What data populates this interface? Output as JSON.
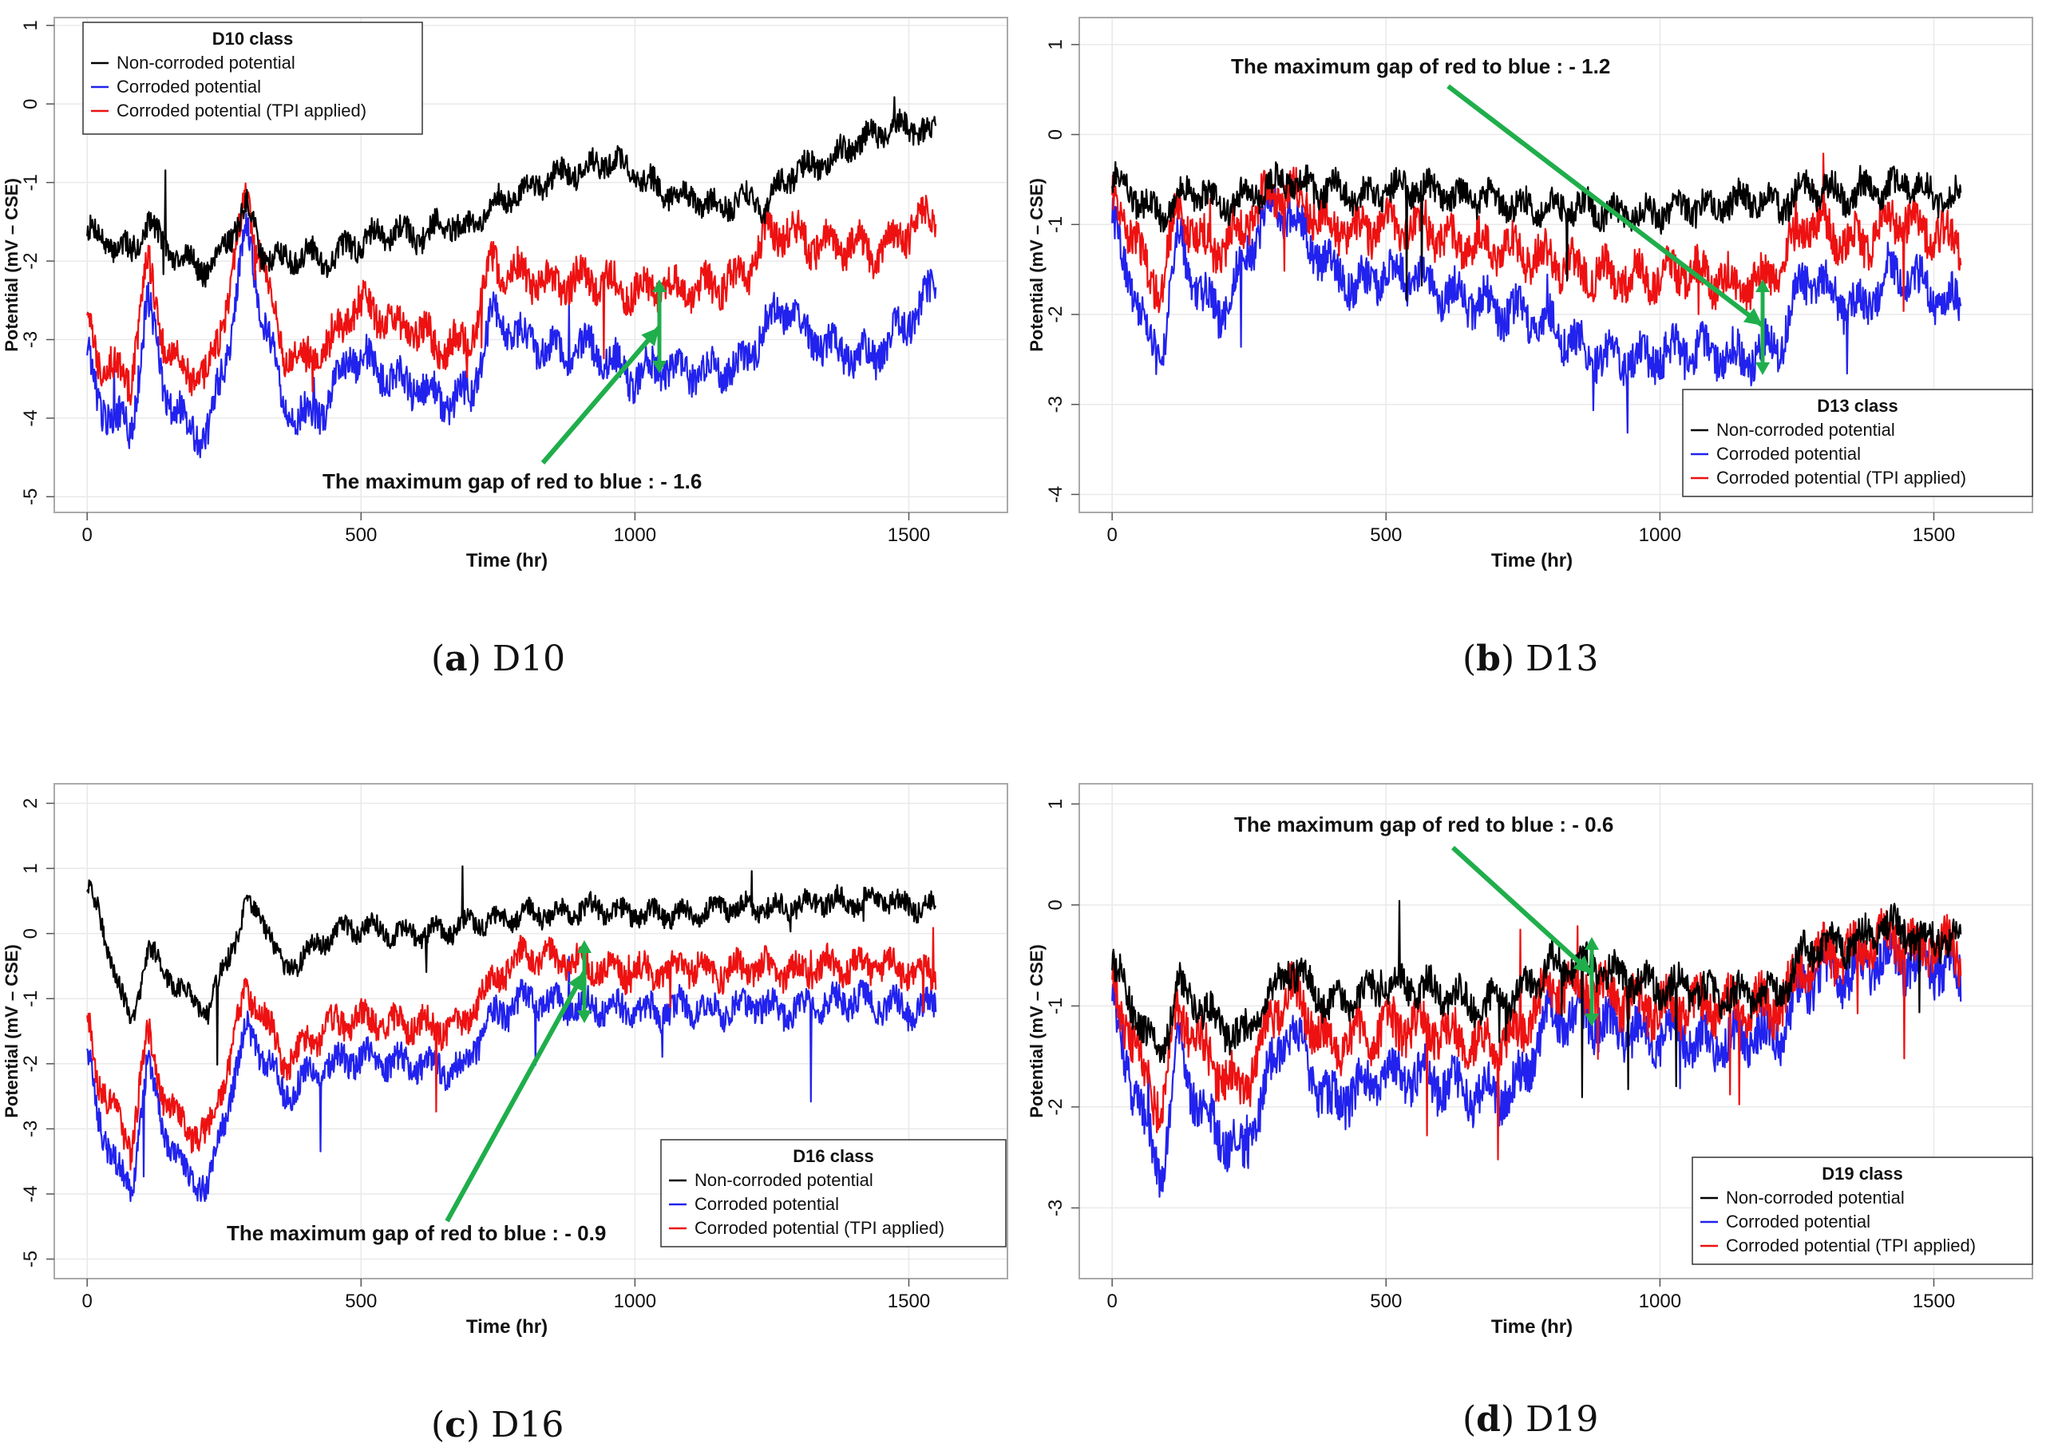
{
  "colors": {
    "non_corroded": "#000000",
    "corroded": "#2222ee",
    "tpi": "#ee1111",
    "arrow": "#1fae4b",
    "grid": "#e9e9e9",
    "frame": "#aaaaaa"
  },
  "legend_labels": [
    "Non-corroded potential",
    "Corroded potential",
    "Corroded potential (TPI applied)"
  ],
  "chart_data": [
    {
      "id": "a",
      "type": "line",
      "caption_letter": "a",
      "caption_text": "D10",
      "legend_title": "D10 class",
      "legend_position": "top-left",
      "xlabel": "Time (hr)",
      "ylabel": "Potential (mV – CSE)",
      "xlim": [
        -60,
        1680
      ],
      "ylim": [
        -5.2,
        1.1
      ],
      "xticks": [
        0,
        500,
        1000,
        1500
      ],
      "yticks": [
        1,
        0,
        -1,
        -2,
        -3,
        -4,
        -5
      ],
      "annotation": "The maximum gap of red to blue : - 1.6",
      "series": [
        {
          "name": "Non-corroded potential",
          "x": [
            0,
            20,
            50,
            80,
            110,
            140,
            180,
            220,
            260,
            290,
            320,
            360,
            400,
            440,
            480,
            520,
            560,
            600,
            660,
            700,
            740,
            800,
            860,
            920,
            960,
            1000,
            1050,
            1100,
            1150,
            1200,
            1240,
            1280,
            1320,
            1360,
            1400,
            1440,
            1480,
            1520,
            1550
          ],
          "values": [
            -1.6,
            -1.7,
            -1.8,
            -1.9,
            -1.5,
            -1.8,
            -2.0,
            -2.1,
            -1.7,
            -1.3,
            -1.9,
            -2.0,
            -1.9,
            -2.0,
            -1.8,
            -1.7,
            -1.6,
            -1.7,
            -1.5,
            -1.6,
            -1.3,
            -1.1,
            -0.9,
            -0.8,
            -0.7,
            -0.9,
            -1.1,
            -1.2,
            -1.3,
            -1.2,
            -1.3,
            -0.9,
            -0.8,
            -0.7,
            -0.5,
            -0.4,
            -0.3,
            -0.3,
            -0.4
          ]
        },
        {
          "name": "Corroded potential",
          "x": [
            0,
            20,
            50,
            80,
            110,
            140,
            180,
            220,
            260,
            290,
            320,
            360,
            400,
            440,
            480,
            520,
            560,
            600,
            660,
            700,
            740,
            800,
            860,
            920,
            960,
            1000,
            1050,
            1100,
            1150,
            1200,
            1240,
            1280,
            1320,
            1360,
            1400,
            1440,
            1480,
            1520,
            1550
          ],
          "values": [
            -3.2,
            -3.8,
            -4.0,
            -4.2,
            -2.5,
            -3.6,
            -4.1,
            -4.2,
            -3.0,
            -1.6,
            -2.6,
            -3.9,
            -4.0,
            -3.8,
            -3.2,
            -3.3,
            -3.5,
            -3.6,
            -3.8,
            -3.7,
            -2.7,
            -3.0,
            -3.2,
            -3.1,
            -3.3,
            -3.5,
            -3.3,
            -3.4,
            -3.4,
            -3.3,
            -2.8,
            -2.6,
            -3.0,
            -3.1,
            -3.2,
            -3.2,
            -2.9,
            -2.6,
            -2.3
          ]
        },
        {
          "name": "Corroded potential (TPI applied)",
          "x": [
            0,
            20,
            50,
            80,
            110,
            140,
            180,
            220,
            260,
            290,
            320,
            360,
            400,
            440,
            480,
            520,
            560,
            600,
            660,
            700,
            740,
            800,
            860,
            920,
            960,
            1000,
            1050,
            1100,
            1150,
            1200,
            1240,
            1280,
            1320,
            1360,
            1400,
            1440,
            1480,
            1520,
            1550
          ],
          "values": [
            -2.7,
            -3.2,
            -3.4,
            -3.5,
            -2.0,
            -3.0,
            -3.4,
            -3.5,
            -2.4,
            -1.2,
            -2.0,
            -3.2,
            -3.3,
            -3.1,
            -2.6,
            -2.6,
            -2.8,
            -2.9,
            -3.1,
            -3.0,
            -2.0,
            -2.2,
            -2.3,
            -2.2,
            -2.3,
            -2.4,
            -2.3,
            -2.4,
            -2.3,
            -2.2,
            -1.7,
            -1.6,
            -1.8,
            -1.8,
            -1.8,
            -1.9,
            -1.7,
            -1.5,
            -1.4
          ]
        }
      ]
    },
    {
      "id": "b",
      "type": "line",
      "caption_letter": "b",
      "caption_text": "D13",
      "legend_title": "D13 class",
      "legend_position": "bottom-right",
      "xlabel": "Time (hr)",
      "ylabel": "Potential (mV – CSE)",
      "xlim": [
        -60,
        1680
      ],
      "ylim": [
        -4.2,
        1.3
      ],
      "xticks": [
        0,
        500,
        1000,
        1500
      ],
      "yticks": [
        1,
        0,
        -1,
        -2,
        -3,
        -4
      ],
      "annotation": "The maximum gap of red to blue : - 1.2",
      "series": [
        {
          "name": "Non-corroded potential",
          "x": [
            0,
            30,
            60,
            90,
            120,
            160,
            200,
            240,
            280,
            320,
            360,
            400,
            450,
            500,
            560,
            620,
            680,
            740,
            800,
            860,
            920,
            980,
            1040,
            1100,
            1160,
            1220,
            1260,
            1300,
            1340,
            1380,
            1420,
            1460,
            1500,
            1550
          ],
          "values": [
            -0.5,
            -0.6,
            -0.8,
            -0.9,
            -0.7,
            -0.6,
            -0.8,
            -0.7,
            -0.6,
            -0.5,
            -0.6,
            -0.6,
            -0.7,
            -0.6,
            -0.6,
            -0.7,
            -0.7,
            -0.8,
            -0.8,
            -0.8,
            -0.9,
            -0.9,
            -0.8,
            -0.8,
            -0.7,
            -0.8,
            -0.6,
            -0.6,
            -0.7,
            -0.6,
            -0.6,
            -0.5,
            -0.7,
            -0.7
          ]
        },
        {
          "name": "Corroded potential",
          "x": [
            0,
            30,
            60,
            90,
            120,
            160,
            200,
            240,
            280,
            320,
            360,
            400,
            450,
            500,
            560,
            620,
            680,
            740,
            800,
            860,
            920,
            980,
            1040,
            1100,
            1160,
            1220,
            1260,
            1300,
            1340,
            1380,
            1420,
            1460,
            1500,
            1550
          ],
          "values": [
            -1.0,
            -1.5,
            -2.2,
            -2.5,
            -1.1,
            -1.8,
            -2.0,
            -1.4,
            -0.9,
            -0.8,
            -1.2,
            -1.5,
            -1.7,
            -1.5,
            -1.6,
            -1.8,
            -1.9,
            -2.0,
            -2.1,
            -2.4,
            -2.5,
            -2.5,
            -2.4,
            -2.4,
            -2.5,
            -2.3,
            -1.6,
            -1.7,
            -1.9,
            -1.9,
            -1.5,
            -1.6,
            -1.8,
            -1.9
          ]
        },
        {
          "name": "Corroded potential (TPI applied)",
          "x": [
            0,
            30,
            60,
            90,
            120,
            160,
            200,
            240,
            280,
            320,
            360,
            400,
            450,
            500,
            560,
            620,
            680,
            740,
            800,
            860,
            920,
            980,
            1040,
            1100,
            1160,
            1220,
            1260,
            1300,
            1340,
            1380,
            1420,
            1460,
            1500,
            1550
          ],
          "values": [
            -0.7,
            -1.0,
            -1.5,
            -1.7,
            -0.8,
            -1.2,
            -1.3,
            -1.0,
            -0.7,
            -0.6,
            -0.8,
            -1.0,
            -1.1,
            -1.0,
            -1.0,
            -1.2,
            -1.2,
            -1.3,
            -1.4,
            -1.5,
            -1.6,
            -1.6,
            -1.5,
            -1.6,
            -1.7,
            -1.5,
            -1.0,
            -1.0,
            -1.2,
            -1.2,
            -0.9,
            -1.0,
            -1.1,
            -1.2
          ]
        }
      ]
    },
    {
      "id": "c",
      "type": "line",
      "caption_letter": "c",
      "caption_text": "D16",
      "legend_title": "D16 class",
      "legend_position": "bottom-right",
      "xlabel": "Time (hr)",
      "ylabel": "Potential (mV – CSE)",
      "xlim": [
        -60,
        1680
      ],
      "ylim": [
        -5.3,
        2.3
      ],
      "xticks": [
        0,
        500,
        1000,
        1500
      ],
      "yticks": [
        2,
        1,
        0,
        -1,
        -2,
        -3,
        -4,
        -5
      ],
      "annotation": "The maximum gap of red to blue : - 0.9",
      "series": [
        {
          "name": "Non-corroded potential",
          "x": [
            0,
            20,
            50,
            80,
            110,
            140,
            180,
            220,
            260,
            290,
            320,
            360,
            400,
            450,
            500,
            560,
            620,
            680,
            740,
            800,
            860,
            920,
            980,
            1040,
            1100,
            1160,
            1220,
            1280,
            1340,
            1400,
            1460,
            1520,
            1550
          ],
          "values": [
            0.7,
            0.3,
            -0.5,
            -1.5,
            -0.2,
            -0.6,
            -0.9,
            -1.2,
            -0.3,
            0.4,
            0.3,
            -0.6,
            -0.3,
            0.0,
            0.1,
            0.0,
            0.0,
            0.1,
            0.2,
            0.3,
            0.3,
            0.4,
            0.3,
            0.3,
            0.3,
            0.4,
            0.4,
            0.4,
            0.5,
            0.5,
            0.5,
            0.4,
            0.4
          ]
        },
        {
          "name": "Corroded potential",
          "x": [
            0,
            20,
            50,
            80,
            110,
            140,
            180,
            220,
            260,
            290,
            320,
            360,
            400,
            450,
            500,
            560,
            620,
            680,
            740,
            800,
            860,
            920,
            980,
            1040,
            1100,
            1160,
            1220,
            1280,
            1340,
            1400,
            1460,
            1520,
            1550
          ],
          "values": [
            -1.8,
            -2.8,
            -3.5,
            -4.0,
            -2.0,
            -3.0,
            -3.7,
            -3.9,
            -2.5,
            -1.5,
            -1.8,
            -2.5,
            -2.2,
            -2.0,
            -1.9,
            -2.0,
            -2.0,
            -2.1,
            -1.3,
            -1.0,
            -1.1,
            -1.1,
            -1.2,
            -1.2,
            -1.1,
            -1.2,
            -1.1,
            -1.2,
            -1.1,
            -1.0,
            -1.1,
            -1.2,
            -1.1
          ]
        },
        {
          "name": "Corroded potential (TPI applied)",
          "x": [
            0,
            20,
            50,
            80,
            110,
            140,
            180,
            220,
            260,
            290,
            320,
            360,
            400,
            450,
            500,
            560,
            620,
            680,
            740,
            800,
            860,
            920,
            980,
            1040,
            1100,
            1160,
            1220,
            1280,
            1340,
            1400,
            1460,
            1520,
            1550
          ],
          "values": [
            -1.3,
            -2.2,
            -2.8,
            -3.3,
            -1.5,
            -2.5,
            -3.0,
            -3.1,
            -1.9,
            -0.9,
            -1.2,
            -2.0,
            -1.7,
            -1.4,
            -1.3,
            -1.4,
            -1.4,
            -1.5,
            -0.7,
            -0.3,
            -0.4,
            -0.5,
            -0.6,
            -0.6,
            -0.5,
            -0.6,
            -0.5,
            -0.6,
            -0.5,
            -0.5,
            -0.5,
            -0.6,
            -0.6
          ]
        }
      ]
    },
    {
      "id": "d",
      "type": "line",
      "caption_letter": "d",
      "caption_text": "D19",
      "legend_title": "D19 class",
      "legend_position": "bottom-right",
      "xlabel": "Time (hr)",
      "ylabel": "Potential (mV – CSE)",
      "xlim": [
        -60,
        1680
      ],
      "ylim": [
        -3.7,
        1.2
      ],
      "xticks": [
        0,
        500,
        1000,
        1500
      ],
      "yticks": [
        1,
        0,
        -1,
        -2,
        -3
      ],
      "annotation": "The maximum gap of red to blue : - 0.6",
      "series": [
        {
          "name": "Non-corroded potential",
          "x": [
            0,
            30,
            60,
            90,
            120,
            160,
            200,
            240,
            280,
            320,
            360,
            400,
            450,
            500,
            560,
            620,
            680,
            740,
            800,
            860,
            920,
            980,
            1040,
            1100,
            1160,
            1220,
            1260,
            1300,
            1340,
            1380,
            1420,
            1460,
            1500,
            1550
          ],
          "values": [
            -0.6,
            -0.9,
            -1.3,
            -1.5,
            -0.8,
            -1.0,
            -1.2,
            -1.3,
            -1.0,
            -0.6,
            -0.8,
            -1.0,
            -0.9,
            -0.8,
            -0.8,
            -0.9,
            -1.0,
            -0.9,
            -0.6,
            -0.6,
            -0.7,
            -0.8,
            -0.8,
            -0.9,
            -0.9,
            -0.9,
            -0.5,
            -0.4,
            -0.4,
            -0.3,
            -0.2,
            -0.3,
            -0.3,
            -0.4
          ]
        },
        {
          "name": "Corroded potential",
          "x": [
            0,
            30,
            60,
            90,
            120,
            160,
            200,
            240,
            280,
            320,
            360,
            400,
            450,
            500,
            560,
            620,
            680,
            740,
            800,
            860,
            920,
            980,
            1040,
            1100,
            1160,
            1220,
            1260,
            1300,
            1340,
            1380,
            1420,
            1460,
            1500,
            1550
          ],
          "values": [
            -1.0,
            -1.6,
            -2.2,
            -2.7,
            -1.4,
            -2.0,
            -2.3,
            -2.5,
            -1.8,
            -1.2,
            -1.6,
            -2.0,
            -1.8,
            -1.7,
            -1.7,
            -1.8,
            -1.9,
            -1.8,
            -1.1,
            -1.1,
            -1.2,
            -1.3,
            -1.3,
            -1.4,
            -1.3,
            -1.3,
            -0.8,
            -0.7,
            -0.7,
            -0.6,
            -0.5,
            -0.6,
            -0.6,
            -0.7
          ]
        },
        {
          "name": "Corroded potential (TPI applied)",
          "x": [
            0,
            30,
            60,
            90,
            120,
            160,
            200,
            240,
            280,
            320,
            360,
            400,
            450,
            500,
            560,
            620,
            680,
            740,
            800,
            860,
            920,
            980,
            1040,
            1100,
            1160,
            1220,
            1260,
            1300,
            1340,
            1380,
            1420,
            1460,
            1500,
            1550
          ],
          "values": [
            -0.8,
            -1.2,
            -1.7,
            -2.0,
            -1.0,
            -1.4,
            -1.7,
            -1.8,
            -1.3,
            -0.8,
            -1.1,
            -1.4,
            -1.3,
            -1.2,
            -1.2,
            -1.3,
            -1.4,
            -1.3,
            -0.8,
            -0.8,
            -0.9,
            -1.0,
            -1.0,
            -1.0,
            -1.0,
            -1.0,
            -0.6,
            -0.5,
            -0.5,
            -0.4,
            -0.3,
            -0.4,
            -0.4,
            -0.5
          ]
        }
      ]
    }
  ]
}
